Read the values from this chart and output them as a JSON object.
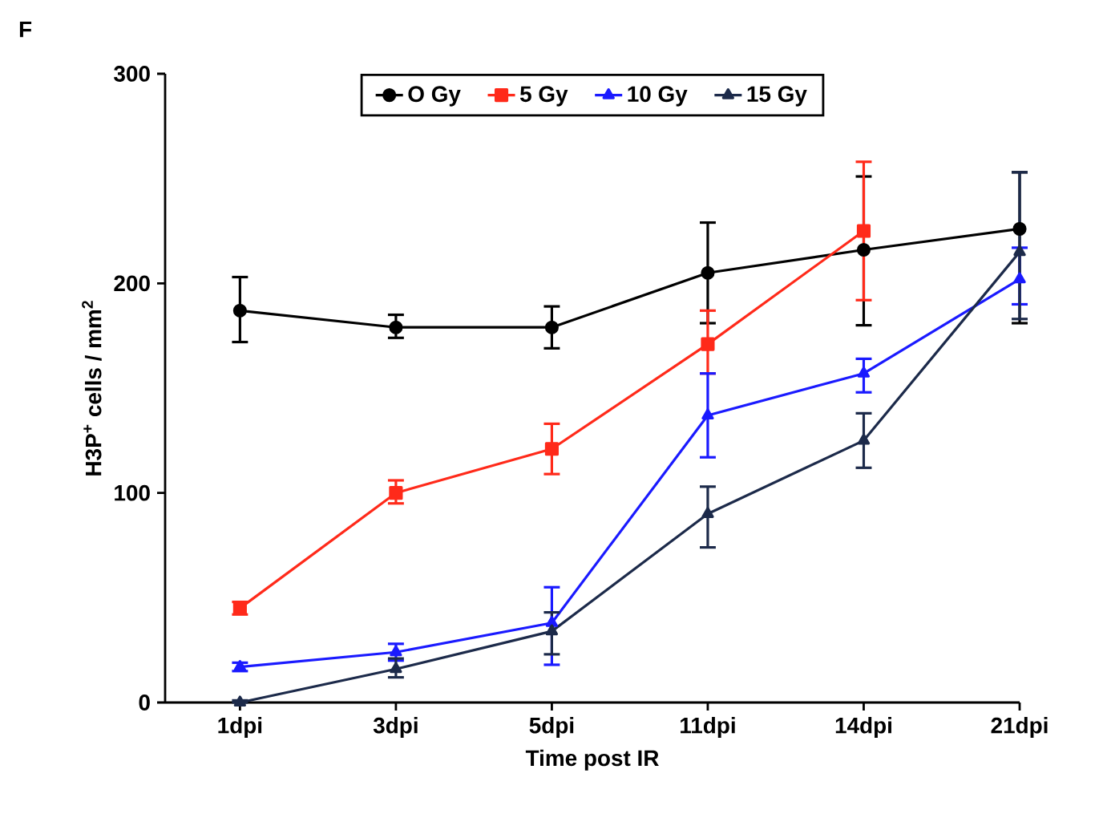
{
  "chart_data": {
    "type": "line",
    "xlabel": "Time post IR",
    "ylabel": "H3P$^{+}$ cells / mm$^{2}$",
    "annotations": [
      "F"
    ],
    "categories": [
      "1dpi",
      "3dpi",
      "5dpi",
      "11dpi",
      "14dpi",
      "21dpi"
    ],
    "ylim": [
      0,
      300
    ],
    "yticks": [
      0,
      100,
      200,
      300
    ],
    "legend": "top",
    "grid": false,
    "line_style": "solid",
    "series": [
      {
        "name": "O Gy",
        "color": "#000000",
        "marker": "circle",
        "values": [
          187,
          179,
          179,
          205,
          216,
          226
        ],
        "errors": [
          [
            172,
            203
          ],
          [
            174,
            185
          ],
          [
            169,
            189
          ],
          [
            181,
            229
          ],
          [
            180,
            251
          ],
          [
            181,
            253
          ]
        ]
      },
      {
        "name": "5 Gy",
        "color": "#ff2a1a",
        "marker": "square",
        "values": [
          45,
          100,
          121,
          171,
          225,
          null
        ],
        "errors": [
          [
            42,
            48
          ],
          [
            95,
            106
          ],
          [
            109,
            133
          ],
          [
            157,
            187
          ],
          [
            192,
            258
          ],
          null
        ]
      },
      {
        "name": "10 Gy",
        "color": "#1a1aff",
        "marker": "triangle",
        "values": [
          17,
          24,
          38,
          137,
          157,
          202
        ],
        "errors": [
          [
            15,
            19
          ],
          [
            20,
            28
          ],
          [
            18,
            55
          ],
          [
            117,
            157
          ],
          [
            148,
            164
          ],
          [
            190,
            217
          ]
        ]
      },
      {
        "name": "15 Gy",
        "color": "#1c2a4a",
        "marker": "triangle",
        "values": [
          0,
          16,
          34,
          90,
          125,
          215
        ],
        "errors": [
          [
            0,
            1
          ],
          [
            12,
            21
          ],
          [
            23,
            43
          ],
          [
            74,
            103
          ],
          [
            112,
            138
          ],
          [
            183,
            253
          ]
        ]
      }
    ]
  }
}
